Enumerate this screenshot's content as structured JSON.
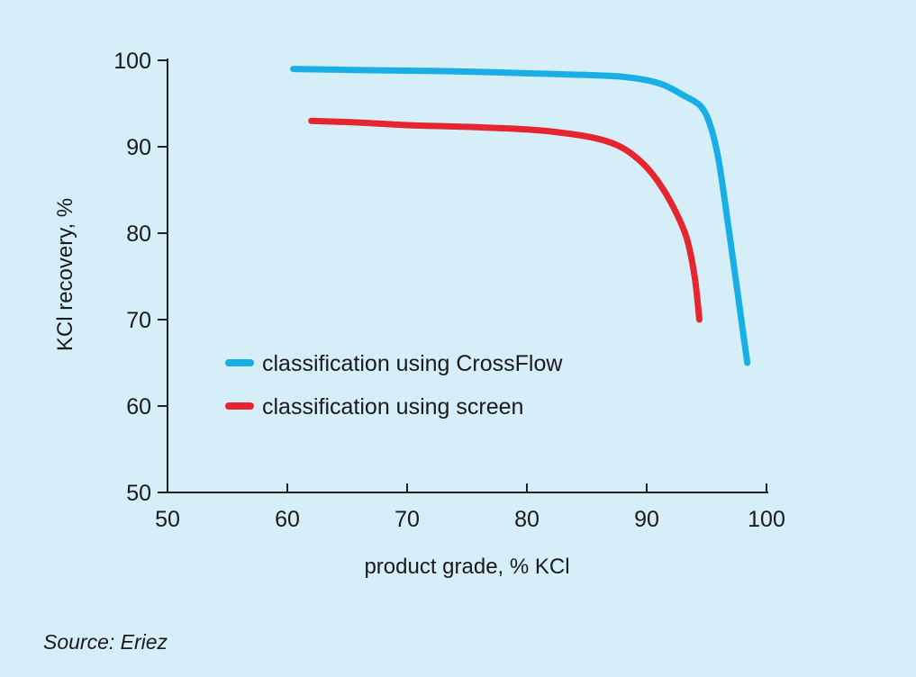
{
  "chart_data": {
    "type": "line",
    "xlabel": "product grade, % KCl",
    "ylabel": "KCl recovery, %",
    "xlim": [
      50,
      100
    ],
    "ylim": [
      50,
      100
    ],
    "xticks": [
      50,
      60,
      70,
      80,
      90,
      100
    ],
    "yticks": [
      50,
      60,
      70,
      80,
      90,
      100
    ],
    "grid": false,
    "legend_position": "lower-left",
    "series": [
      {
        "name": "classification using CrossFlow",
        "color": "#19aee6",
        "points": [
          [
            60.5,
            99.0
          ],
          [
            65,
            98.9
          ],
          [
            70,
            98.8
          ],
          [
            75,
            98.7
          ],
          [
            80,
            98.5
          ],
          [
            85,
            98.3
          ],
          [
            88,
            98.1
          ],
          [
            90,
            97.7
          ],
          [
            91.5,
            97.1
          ],
          [
            93,
            96.0
          ],
          [
            94.5,
            94.7
          ],
          [
            95.3,
            92.5
          ],
          [
            96,
            88.5
          ],
          [
            96.8,
            81.0
          ],
          [
            97.6,
            73.0
          ],
          [
            98.4,
            65.0
          ]
        ]
      },
      {
        "name": "classification using screen",
        "color": "#e52630",
        "points": [
          [
            62,
            93.0
          ],
          [
            66,
            92.8
          ],
          [
            70,
            92.5
          ],
          [
            75,
            92.3
          ],
          [
            80,
            92.0
          ],
          [
            83,
            91.6
          ],
          [
            85.7,
            91.0
          ],
          [
            87.5,
            90.2
          ],
          [
            89,
            88.9
          ],
          [
            90.5,
            86.8
          ],
          [
            92,
            83.6
          ],
          [
            93.3,
            79.6
          ],
          [
            94,
            75.0
          ],
          [
            94.4,
            70.0
          ]
        ]
      }
    ]
  },
  "source": "Source: Eriez"
}
